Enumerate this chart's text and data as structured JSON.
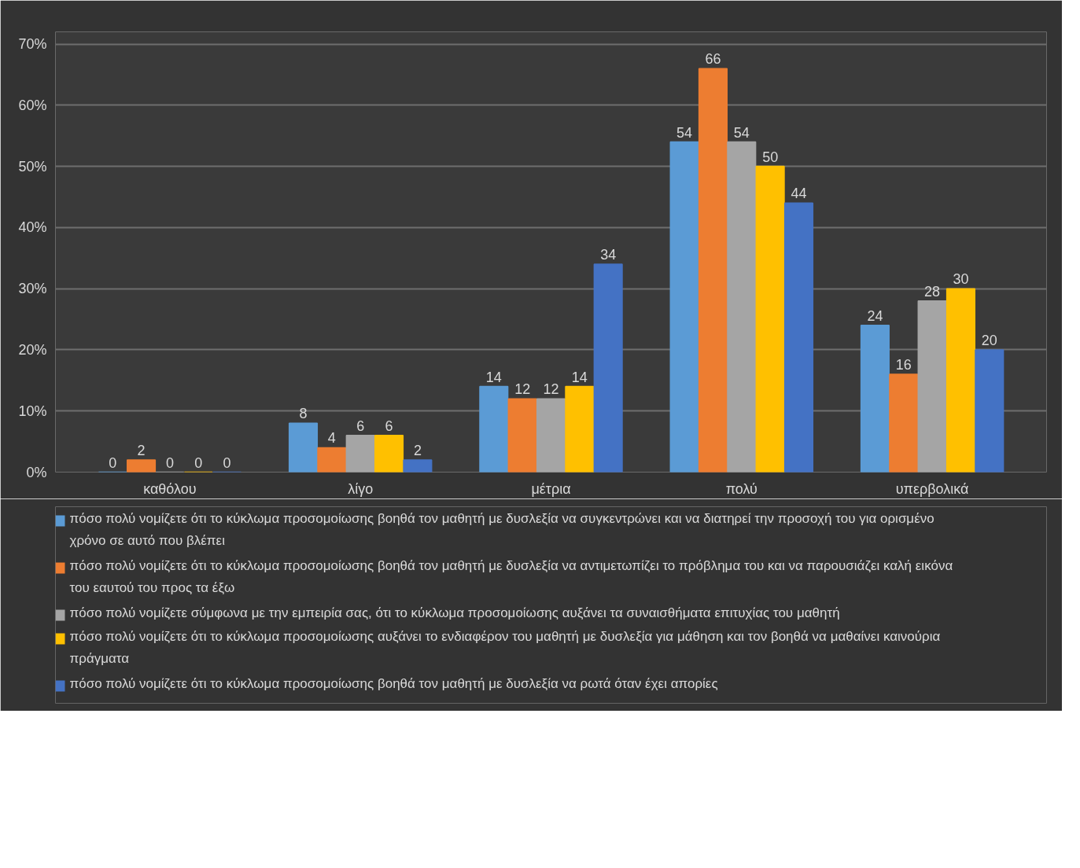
{
  "chart_data": {
    "type": "bar",
    "categories": [
      "καθόλου",
      "λίγο",
      "μέτρια",
      "πολύ",
      "υπερβολικά"
    ],
    "series": [
      {
        "name": "πόσο πολύ νομίζετε ότι το κύκλωμα προσομοίωσης βοηθά τον μαθητή με δυσλεξία να συγκεντρώνει και να διατηρεί την προσοχή του για ορισμένο χρόνο σε αυτό που βλέπει",
        "color": "#5b9bd5",
        "values": [
          0,
          8,
          14,
          54,
          24
        ]
      },
      {
        "name": "πόσο πολύ νομίζετε ότι το κύκλωμα προσομοίωσης βοηθά τον μαθητή με δυσλεξία να αντιμετωπίζει το πρόβλημα του και να παρουσιάζει καλή εικόνα του εαυτού του προς τα έξω",
        "color": "#ed7d31",
        "values": [
          2,
          4,
          12,
          66,
          16
        ]
      },
      {
        "name": "πόσο πολύ νομίζετε σύμφωνα με την εμπειρία σας, ότι το κύκλωμα προσομοίωσης αυξάνει τα συναισθήματα επιτυχίας του μαθητή",
        "color": "#a5a5a5",
        "values": [
          0,
          6,
          12,
          54,
          28
        ]
      },
      {
        "name": "πόσο πολύ νομίζετε ότι το κύκλωμα προσομοίωσης αυξάνει το ενδιαφέρον του μαθητή με δυσλεξία για μάθηση και τον βοηθά να μαθαίνει καινούρια πράγματα",
        "color": "#ffc000",
        "values": [
          0,
          6,
          14,
          50,
          30
        ]
      },
      {
        "name": "πόσο πολύ νομίζετε ότι το κύκλωμα προσομοίωσης βοηθά τον μαθητή με δυσλεξία να ρωτά όταν έχει απορίες",
        "color": "#4472c4",
        "values": [
          0,
          2,
          34,
          44,
          20
        ]
      }
    ],
    "ylim": [
      0,
      72
    ],
    "yticks": [
      {
        "value": 0,
        "label": "0%"
      },
      {
        "value": 10,
        "label": "10%"
      },
      {
        "value": 20,
        "label": "20%"
      },
      {
        "value": 30,
        "label": "30%"
      },
      {
        "value": 40,
        "label": "40%"
      },
      {
        "value": 50,
        "label": "50%"
      },
      {
        "value": 60,
        "label": "60%"
      },
      {
        "value": 70,
        "label": "70%"
      }
    ],
    "grid": "y",
    "legend": "bottom",
    "data_labels": true
  }
}
